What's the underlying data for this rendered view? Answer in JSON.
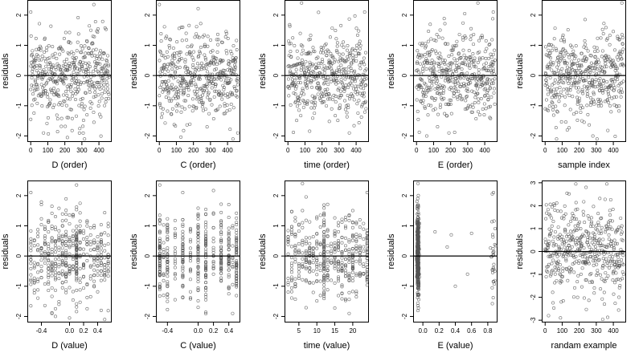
{
  "figure": {
    "background": "#ffffff",
    "point_color": "#555555",
    "frame_color": "#000000",
    "zero_line_color": "#000000"
  },
  "chart_data": [
    {
      "type": "scatter",
      "xlabel": "D (order)",
      "ylabel": "residuals",
      "xlim": [
        -20,
        475
      ],
      "ylim": [
        -2.2,
        2.5
      ],
      "xticks": [
        0,
        100,
        200,
        300,
        400
      ],
      "xtick_labels": [
        "0",
        "100",
        "200",
        "300",
        "400"
      ],
      "yticks": [
        -2,
        -1,
        0,
        1,
        2
      ],
      "ytick_labels": [
        "-2",
        "-1",
        "0",
        "1",
        "2"
      ],
      "reference_line_y": 0,
      "distribution": {
        "kind": "index",
        "n": 460,
        "x_range": [
          0,
          460
        ],
        "y_mean": 0,
        "y_sd": 0.7
      },
      "points": [
        [
          0,
          2.1
        ],
        [
          370,
          2.35
        ],
        [
          0,
          -1.45
        ],
        [
          75,
          -1.9
        ],
        [
          215,
          -2.05
        ]
      ]
    },
    {
      "type": "scatter",
      "xlabel": "C (order)",
      "ylabel": "residuals",
      "xlim": [
        -20,
        475
      ],
      "ylim": [
        -2.2,
        2.5
      ],
      "xticks": [
        0,
        100,
        200,
        300,
        400
      ],
      "xtick_labels": [
        "0",
        "100",
        "200",
        "300",
        "400"
      ],
      "yticks": [
        -2,
        -1,
        0,
        1,
        2
      ],
      "ytick_labels": [
        "-2",
        "-1",
        "0",
        "1",
        "2"
      ],
      "reference_line_y": 0,
      "distribution": {
        "kind": "index",
        "n": 460,
        "x_range": [
          0,
          460
        ],
        "y_mean": 0,
        "y_sd": 0.7
      },
      "points": [
        [
          0,
          2.35
        ],
        [
          280,
          -1.7
        ],
        [
          460,
          -1.9
        ]
      ]
    },
    {
      "type": "scatter",
      "xlabel": "time (order)",
      "ylabel": "residuals",
      "xlim": [
        -20,
        475
      ],
      "ylim": [
        -2.2,
        2.5
      ],
      "xticks": [
        0,
        100,
        200,
        300,
        400
      ],
      "xtick_labels": [
        "0",
        "100",
        "200",
        "300",
        "400"
      ],
      "yticks": [
        -2,
        -1,
        0,
        1,
        2
      ],
      "ytick_labels": [
        "-2",
        "-1",
        "0",
        "1",
        "2"
      ],
      "reference_line_y": 0,
      "distribution": {
        "kind": "index",
        "n": 460,
        "x_range": [
          0,
          460
        ],
        "y_mean": 0,
        "y_sd": 0.7
      },
      "points": [
        [
          80,
          2.4
        ],
        [
          450,
          2.1
        ],
        [
          360,
          -1.9
        ]
      ]
    },
    {
      "type": "scatter",
      "xlabel": "E (order)",
      "ylabel": "residuals",
      "xlim": [
        -20,
        475
      ],
      "ylim": [
        -2.2,
        2.5
      ],
      "xticks": [
        0,
        100,
        200,
        300,
        400
      ],
      "xtick_labels": [
        "0",
        "100",
        "200",
        "300",
        "400"
      ],
      "yticks": [
        -2,
        -1,
        0,
        1,
        2
      ],
      "ytick_labels": [
        "-2",
        "-1",
        "0",
        "1",
        "2"
      ],
      "reference_line_y": 0,
      "distribution": {
        "kind": "index",
        "n": 460,
        "x_range": [
          0,
          460
        ],
        "y_mean": 0,
        "y_sd": 0.7
      },
      "points": [
        [
          360,
          2.4
        ],
        [
          450,
          2.1
        ],
        [
          60,
          -2.0
        ],
        [
          190,
          -1.9
        ]
      ]
    },
    {
      "type": "scatter",
      "xlabel": "sample index",
      "ylabel": "residuals",
      "xlim": [
        -20,
        475
      ],
      "ylim": [
        -2.2,
        2.5
      ],
      "xticks": [
        0,
        100,
        200,
        300,
        400
      ],
      "xtick_labels": [
        "0",
        "100",
        "200",
        "300",
        "400"
      ],
      "yticks": [
        -2,
        -1,
        0,
        1,
        2
      ],
      "ytick_labels": [
        "-2",
        "-1",
        "0",
        "1",
        "2"
      ],
      "reference_line_y": 0,
      "distribution": {
        "kind": "index",
        "n": 460,
        "x_range": [
          0,
          460
        ],
        "y_mean": 0,
        "y_sd": 0.7
      },
      "points": [
        [
          450,
          2.4
        ],
        [
          130,
          -1.8
        ],
        [
          280,
          -2.0
        ]
      ]
    },
    {
      "type": "scatter",
      "xlabel": "D (value)",
      "ylabel": "residuals",
      "xlim": [
        -0.6,
        0.6
      ],
      "ylim": [
        -2.2,
        2.5
      ],
      "xticks": [
        -0.4,
        0.0,
        0.2,
        0.4
      ],
      "xtick_labels": [
        "-0.4",
        "0.0",
        "0.2",
        "0.4"
      ],
      "yticks": [
        -2,
        -1,
        0,
        1,
        2
      ],
      "ytick_labels": [
        "-2",
        "-1",
        "0",
        "1",
        "2"
      ],
      "reference_line_y": 0,
      "distribution": {
        "kind": "levels",
        "n": 460,
        "levels": [
          -0.55,
          -0.5,
          -0.45,
          -0.4,
          -0.35,
          -0.3,
          -0.25,
          -0.2,
          -0.15,
          -0.1,
          -0.05,
          0,
          0.05,
          0.1,
          0.15,
          0.2,
          0.25,
          0.3,
          0.35,
          0.4,
          0.45,
          0.5,
          0.55
        ],
        "level_weights": [
          1,
          1,
          1,
          1,
          1,
          1,
          1,
          1,
          1,
          1,
          2,
          1,
          1,
          3,
          1,
          1,
          1,
          1,
          1,
          1,
          1,
          1,
          1
        ],
        "y_mean": 0,
        "y_sd": 0.7
      },
      "points": [
        [
          -0.55,
          2.1
        ],
        [
          0.1,
          2.35
        ],
        [
          -0.25,
          -1.9
        ],
        [
          0.0,
          -2.05
        ]
      ]
    },
    {
      "type": "scatter",
      "xlabel": "C (value)",
      "ylabel": "residuals",
      "xlim": [
        -0.55,
        0.55
      ],
      "ylim": [
        -2.2,
        2.5
      ],
      "xticks": [
        -0.4,
        0.0,
        0.2,
        0.4
      ],
      "xtick_labels": [
        "-0.4",
        "0.0",
        "0.2",
        "0.4"
      ],
      "yticks": [
        -2,
        -1,
        0,
        1,
        2
      ],
      "ytick_labels": [
        "-2",
        "-1",
        "0",
        "1",
        "2"
      ],
      "reference_line_y": 0,
      "distribution": {
        "kind": "levels",
        "n": 460,
        "levels": [
          -0.5,
          -0.45,
          -0.4,
          -0.3,
          -0.2,
          -0.1,
          0,
          0.1,
          0.2,
          0.3,
          0.4,
          0.45,
          0.5
        ],
        "level_weights": [
          3,
          1,
          2,
          1,
          2,
          1,
          2,
          3,
          1,
          2,
          2,
          1,
          3
        ],
        "y_mean": 0,
        "y_sd": 0.7
      },
      "points": [
        [
          -0.5,
          2.35
        ],
        [
          -0.2,
          2.1
        ],
        [
          0.0,
          -1.7
        ],
        [
          0.45,
          -1.9
        ]
      ]
    },
    {
      "type": "scatter",
      "xlabel": "time (value)",
      "ylabel": "residuals",
      "xlim": [
        1,
        24.5
      ],
      "ylim": [
        -2.2,
        2.5
      ],
      "xticks": [
        5,
        10,
        15,
        20
      ],
      "xtick_labels": [
        "5",
        "10",
        "15",
        "20"
      ],
      "yticks": [
        -2,
        -1,
        0,
        1,
        2
      ],
      "ytick_labels": [
        "-2",
        "-1",
        "0",
        "1",
        "2"
      ],
      "reference_line_y": 0,
      "distribution": {
        "kind": "levels",
        "n": 460,
        "levels": [
          2,
          3,
          4,
          5,
          6,
          7,
          8,
          9,
          10,
          11,
          12,
          13,
          14,
          15,
          16,
          17,
          18,
          19,
          20,
          21,
          22,
          23,
          24
        ],
        "level_weights": [
          1,
          1,
          1,
          1,
          1,
          1,
          1,
          1,
          1,
          1,
          3,
          1,
          1,
          1,
          1,
          1,
          1,
          1,
          1,
          1,
          1,
          1,
          2
        ],
        "y_mean": 0,
        "y_sd": 0.7
      },
      "points": [
        [
          6,
          2.4
        ],
        [
          24,
          2.1
        ],
        [
          19,
          -1.9
        ]
      ]
    },
    {
      "type": "scatter",
      "xlabel": "E (value)",
      "ylabel": "residuals",
      "xlim": [
        -0.12,
        0.92
      ],
      "ylim": [
        -2.2,
        2.5
      ],
      "xticks": [
        0.0,
        0.2,
        0.4,
        0.6,
        0.8
      ],
      "xtick_labels": [
        "0.0",
        "0.2",
        "0.4",
        "0.6",
        "0.8"
      ],
      "yticks": [
        -2,
        -1,
        0,
        1,
        2
      ],
      "ytick_labels": [
        "-2",
        "-1",
        "0",
        "1",
        "2"
      ],
      "reference_line_y": 0,
      "distribution": {
        "kind": "cluster_mix",
        "n": 460,
        "clusters": [
          {
            "x_mean": -0.06,
            "x_sd": 0.006,
            "weight": 0.9
          },
          {
            "x_mean": 0.87,
            "x_sd": 0.015,
            "weight": 0.1
          }
        ],
        "y_mean": 0,
        "y_sd": 0.7
      },
      "points": [
        [
          -0.06,
          2.4
        ],
        [
          0.87,
          2.1
        ],
        [
          0.15,
          0.8
        ],
        [
          0.35,
          0.7
        ],
        [
          0.6,
          0.75
        ],
        [
          0.4,
          -1.0
        ],
        [
          0.55,
          -0.6
        ],
        [
          0.3,
          0.3
        ]
      ]
    },
    {
      "type": "scatter",
      "xlabel": "randam example",
      "ylabel": "residuals",
      "xlim": [
        -20,
        475
      ],
      "ylim": [
        -3.1,
        3.1
      ],
      "xticks": [
        0,
        100,
        200,
        300,
        400
      ],
      "xtick_labels": [
        "0",
        "100",
        "200",
        "300",
        "400"
      ],
      "yticks": [
        -3,
        -2,
        -1,
        0,
        1,
        2,
        3
      ],
      "ytick_labels": [
        "-3",
        "-2",
        "-1",
        "0",
        "1",
        "2",
        "3"
      ],
      "reference_line_y": 0,
      "distribution": {
        "kind": "index",
        "n": 460,
        "x_range": [
          0,
          460
        ],
        "y_mean": 0,
        "y_sd": 1.0
      },
      "points": [
        [
          180,
          2.95
        ],
        [
          240,
          2.8
        ],
        [
          20,
          -2.8
        ],
        [
          90,
          -2.9
        ]
      ]
    }
  ]
}
